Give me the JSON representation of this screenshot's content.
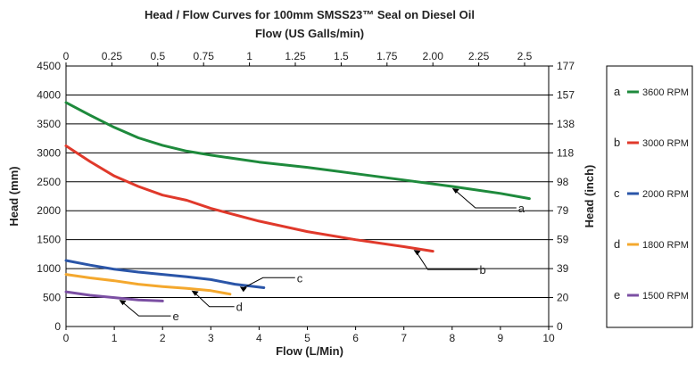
{
  "chart_data": {
    "type": "line",
    "title": "Head / Flow Curves for 100mm SMSS23™ Seal on Diesel Oil",
    "xlabel": "Flow (L/Min)",
    "x2label": "Flow (US Galls/min)",
    "ylabel": "Head (mm)",
    "y2label": "Head (inch)",
    "xlim": [
      0,
      10
    ],
    "ylim": [
      0,
      4500
    ],
    "x_ticks": [
      "0",
      "1",
      "2",
      "3",
      "4",
      "5",
      "6",
      "7",
      "8",
      "9",
      "10"
    ],
    "y_ticks": [
      "0",
      "500",
      "1000",
      "1500",
      "2000",
      "2500",
      "3000",
      "3500",
      "4000",
      "4500"
    ],
    "x2_ticks": [
      "0",
      "0.25",
      "0.5",
      "0.75",
      "1",
      "1.25",
      "1.5",
      "1.75",
      "2.00",
      "2.25",
      "2.5"
    ],
    "y2_ticks": [
      "0",
      "20",
      "39",
      "59",
      "79",
      "98",
      "118",
      "138",
      "157",
      "177"
    ],
    "grid": "horizontal",
    "legend_position": "right",
    "series": [
      {
        "name": "3600 RPM",
        "label": "a",
        "color": "#1e8a3c",
        "x": [
          0,
          0.5,
          1,
          1.5,
          2,
          2.5,
          3,
          4,
          5,
          6,
          7,
          8,
          9,
          9.6
        ],
        "y": [
          3870,
          3650,
          3440,
          3260,
          3130,
          3030,
          2960,
          2840,
          2750,
          2640,
          2530,
          2420,
          2300,
          2210
        ]
      },
      {
        "name": "3000 RPM",
        "label": "b",
        "color": "#e0392b",
        "x": [
          0,
          0.5,
          1,
          1.5,
          2,
          2.5,
          3,
          4,
          5,
          6,
          7,
          7.6
        ],
        "y": [
          3120,
          2850,
          2600,
          2420,
          2270,
          2180,
          2040,
          1820,
          1640,
          1500,
          1380,
          1300
        ]
      },
      {
        "name": "2000 RPM",
        "label": "c",
        "color": "#2a55a8",
        "x": [
          0,
          0.5,
          1,
          1.5,
          2,
          2.5,
          3,
          3.5,
          4.1
        ],
        "y": [
          1140,
          1060,
          990,
          940,
          900,
          860,
          810,
          730,
          670
        ]
      },
      {
        "name": "1800 RPM",
        "label": "d",
        "color": "#f4a82e",
        "x": [
          0,
          0.5,
          1,
          1.5,
          2,
          2.5,
          3,
          3.4
        ],
        "y": [
          900,
          840,
          790,
          730,
          690,
          660,
          620,
          560
        ]
      },
      {
        "name": "1500 RPM",
        "label": "e",
        "color": "#7b4fa3",
        "x": [
          0,
          0.5,
          1,
          1.5,
          2
        ],
        "y": [
          600,
          540,
          500,
          460,
          440
        ]
      }
    ]
  }
}
